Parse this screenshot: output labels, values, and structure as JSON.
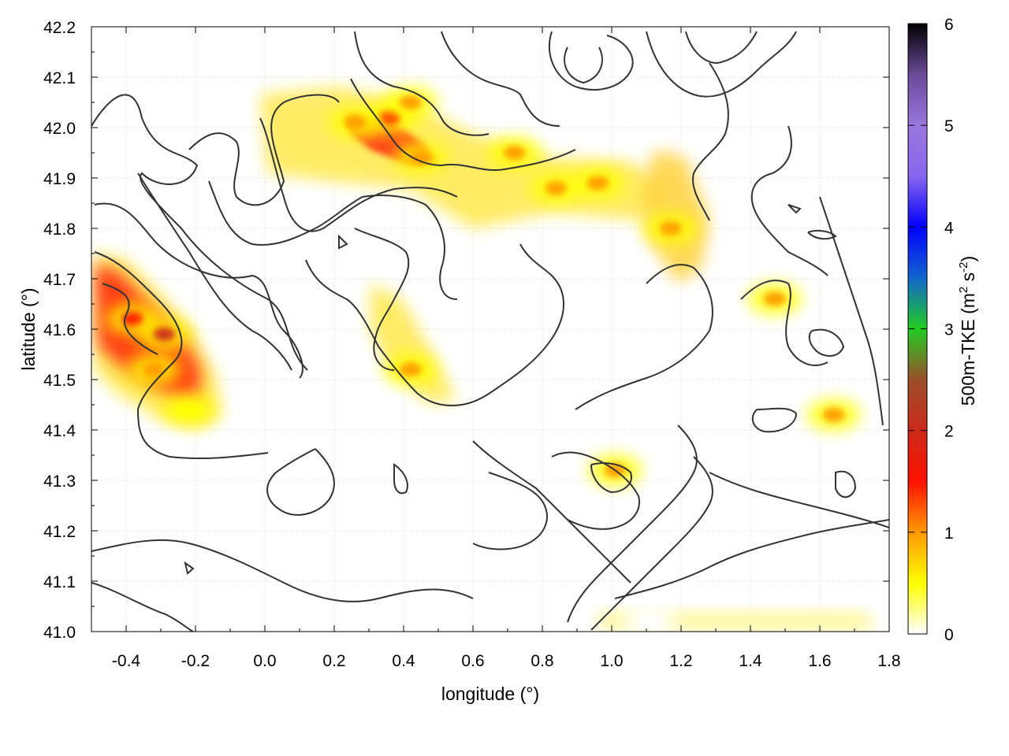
{
  "chart_data": {
    "type": "heatmap",
    "title": "",
    "xlabel": "longitude (°)",
    "ylabel": "latitude (°)",
    "xlim": [
      -0.5,
      1.8
    ],
    "ylim": [
      41.0,
      42.2
    ],
    "x_ticks": [
      "-0.4",
      "-0.2",
      "0.0",
      "0.2",
      "0.4",
      "0.6",
      "0.8",
      "1.0",
      "1.2",
      "1.4",
      "1.6",
      "1.8"
    ],
    "y_ticks": [
      "41.0",
      "41.1",
      "41.2",
      "41.3",
      "41.4",
      "41.5",
      "41.6",
      "41.7",
      "41.8",
      "41.9",
      "42.0",
      "42.1",
      "42.2"
    ],
    "grid": true,
    "colorbar": {
      "label_main": "500m-TKE (m",
      "label_sup1": "2",
      "label_mid": " s",
      "label_sup2": "-2",
      "label_end": ")",
      "range": [
        0,
        6
      ],
      "ticks": [
        "0",
        "1",
        "2",
        "3",
        "4",
        "5",
        "6"
      ],
      "colors": [
        "#ffffff",
        "#ffff00",
        "#ff9900",
        "#ff1100",
        "#cc2a1a",
        "#9a4f2a",
        "#22cc22",
        "#1166cc",
        "#0000ff",
        "#8866ee",
        "#9977dd",
        "#6a4a99",
        "#000000"
      ]
    },
    "tke_hotspots": [
      {
        "lon": -0.38,
        "lat": 41.62,
        "value": 1.3
      },
      {
        "lon": -0.29,
        "lat": 41.59,
        "value": 1.9
      },
      {
        "lon": -0.32,
        "lat": 41.52,
        "value": 1.0
      },
      {
        "lon": -0.22,
        "lat": 41.44,
        "value": 0.5
      },
      {
        "lon": 0.36,
        "lat": 42.02,
        "value": 1.6
      },
      {
        "lon": 0.42,
        "lat": 42.05,
        "value": 1.1
      },
      {
        "lon": 0.26,
        "lat": 42.01,
        "value": 0.9
      },
      {
        "lon": 0.45,
        "lat": 41.94,
        "value": 0.9
      },
      {
        "lon": 0.72,
        "lat": 41.95,
        "value": 0.9
      },
      {
        "lon": 0.84,
        "lat": 41.88,
        "value": 0.9
      },
      {
        "lon": 0.96,
        "lat": 41.89,
        "value": 1.2
      },
      {
        "lon": 1.17,
        "lat": 41.8,
        "value": 1.1
      },
      {
        "lon": 0.42,
        "lat": 41.52,
        "value": 0.9
      },
      {
        "lon": 1.47,
        "lat": 41.66,
        "value": 0.8
      },
      {
        "lon": 1.64,
        "lat": 41.43,
        "value": 0.8
      },
      {
        "lon": 1.01,
        "lat": 41.32,
        "value": 0.8
      },
      {
        "lon": 1.11,
        "lat": 41.02,
        "value": 0.2
      }
    ]
  }
}
